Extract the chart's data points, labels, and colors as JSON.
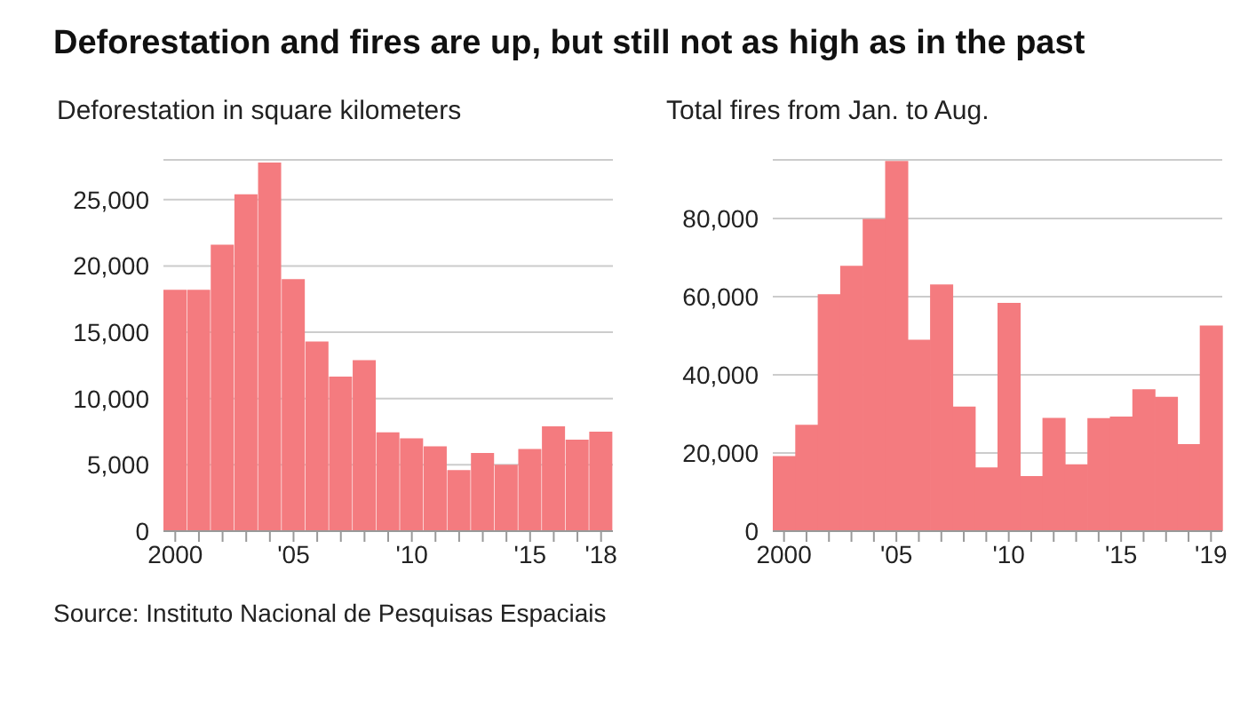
{
  "chart_data": [
    {
      "type": "bar",
      "title": "Deforestation and fires are up, but still not as high as in the past",
      "subtitle": "Deforestation in square kilometers",
      "categories": [
        "2000",
        null,
        null,
        null,
        null,
        "'05",
        null,
        null,
        null,
        null,
        "'10",
        null,
        null,
        null,
        null,
        "'15",
        null,
        null,
        "'18"
      ],
      "values": [
        18200,
        18200,
        21600,
        25400,
        27800,
        19000,
        14300,
        11650,
        12900,
        7450,
        7000,
        6400,
        4600,
        5900,
        5000,
        6200,
        7900,
        6900,
        7500
      ],
      "color": "#f47b7f",
      "ylim": [
        0,
        28000
      ],
      "yticks": [
        0,
        {
          "value": 5000,
          "label": "5,000"
        },
        {
          "value": 10000,
          "label": "10,000"
        },
        {
          "value": 15000,
          "label": "15,000"
        },
        {
          "value": 20000,
          "label": "20,000"
        },
        {
          "value": 25000,
          "label": "25,000"
        }
      ],
      "grid": "y",
      "annotations": [
        "Source: Instituto Nacional de Pesquisas Espaciais"
      ]
    },
    {
      "type": "bar",
      "subtitle": "Total fires from Jan. to Aug.",
      "categories": [
        "2000",
        null,
        null,
        null,
        null,
        "'05",
        null,
        null,
        null,
        null,
        "'10",
        null,
        null,
        null,
        null,
        "'15",
        null,
        null,
        null,
        "'19"
      ],
      "values": [
        19200,
        27200,
        60600,
        67900,
        79900,
        94700,
        49000,
        63100,
        31900,
        16300,
        58400,
        14100,
        29000,
        17100,
        28900,
        29300,
        36300,
        34400,
        22300,
        52600
      ],
      "color": "#f47b7f",
      "ylim": [
        0,
        95000
      ],
      "yticks": [
        0,
        {
          "value": 20000,
          "label": "20,000"
        },
        {
          "value": 40000,
          "label": "40,000"
        },
        {
          "value": 60000,
          "label": "60,000"
        },
        {
          "value": 80000,
          "label": "80,000"
        }
      ],
      "grid": "y"
    }
  ]
}
